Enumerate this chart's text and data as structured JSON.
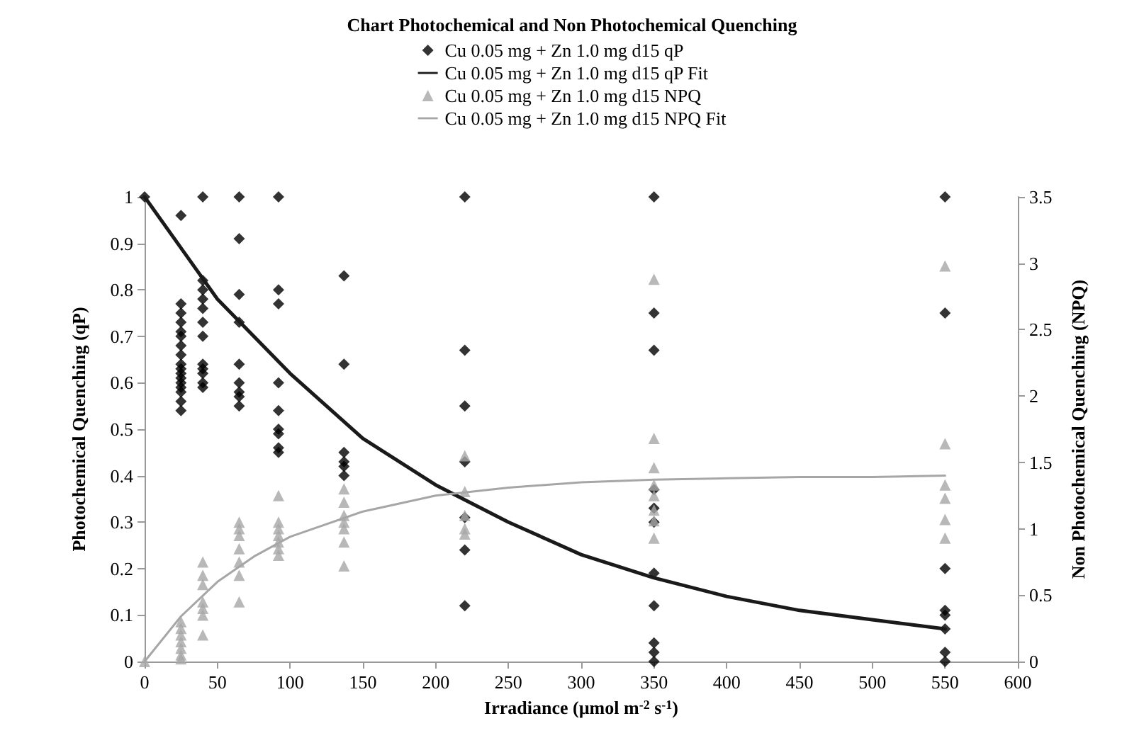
{
  "chart_data": {
    "type": "scatter",
    "title": "Chart Photochemical and Non Photochemical Quenching",
    "xlabel": "Irradiance (µmol m$^{-2}$ s$^{-1}$)",
    "ylabel": "Photochemical Quenching (qP)",
    "y2label": "Non Photochemical Quenching (NPQ)",
    "xlim": [
      0,
      600
    ],
    "xticks": [
      0,
      50,
      100,
      150,
      200,
      250,
      300,
      350,
      400,
      450,
      500,
      550,
      600
    ],
    "ylim": [
      0,
      1
    ],
    "yticks": [
      0,
      0.1,
      0.2,
      0.3,
      0.4,
      0.5,
      0.6,
      0.7,
      0.8,
      0.9,
      1
    ],
    "y2lim": [
      0,
      3.5
    ],
    "y2ticks": [
      0,
      0.5,
      1,
      1.5,
      2,
      2.5,
      3,
      3.5
    ],
    "grid": false,
    "legend": "top",
    "series": [
      {
        "name": "Cu 0.05 mg + Zn 1.0 mg d15 qP",
        "type": "scatter",
        "marker": "diamond",
        "color": "#000000",
        "x": [
          0,
          25,
          25,
          25,
          25,
          25,
          25,
          25,
          25,
          25,
          25,
          25,
          25,
          25,
          25,
          25,
          25,
          25,
          40,
          40,
          40,
          40,
          40,
          40,
          40,
          40,
          40,
          40,
          40,
          40,
          65,
          65,
          65,
          65,
          65,
          65,
          65,
          65,
          65,
          92,
          92,
          92,
          92,
          92,
          92,
          92,
          92,
          92,
          137,
          137,
          137,
          137,
          137,
          137,
          220,
          220,
          220,
          220,
          220,
          220,
          220,
          350,
          350,
          350,
          350,
          350,
          350,
          350,
          350,
          350,
          350,
          350,
          550,
          550,
          550,
          550,
          550,
          550,
          550,
          550
        ],
        "values": [
          1,
          0.96,
          0.77,
          0.75,
          0.73,
          0.71,
          0.7,
          0.68,
          0.66,
          0.64,
          0.63,
          0.62,
          0.61,
          0.6,
          0.59,
          0.58,
          0.56,
          0.54,
          1,
          0.82,
          0.8,
          0.78,
          0.76,
          0.73,
          0.7,
          0.64,
          0.63,
          0.62,
          0.6,
          0.59,
          1,
          0.91,
          0.79,
          0.73,
          0.64,
          0.6,
          0.58,
          0.57,
          0.55,
          1,
          0.8,
          0.77,
          0.6,
          0.54,
          0.5,
          0.49,
          0.46,
          0.45,
          0.83,
          0.64,
          0.45,
          0.43,
          0.42,
          0.4,
          1,
          0.67,
          0.55,
          0.43,
          0.31,
          0.24,
          0.12,
          1,
          0.75,
          0.67,
          0.37,
          0.33,
          0.3,
          0.19,
          0.12,
          0.04,
          0.02,
          0,
          1,
          0.75,
          0.2,
          0.11,
          0.1,
          0.07,
          0.02,
          0
        ]
      },
      {
        "name": "Cu 0.05 mg + Zn 1.0 mg d15 qP Fit",
        "type": "line",
        "marker": "none",
        "line_style": "solid",
        "color": "#1a1a1a",
        "x": [
          0,
          25,
          50,
          75,
          100,
          150,
          200,
          250,
          300,
          350,
          400,
          450,
          500,
          550
        ],
        "values": [
          1,
          0.89,
          0.78,
          0.7,
          0.62,
          0.48,
          0.38,
          0.3,
          0.23,
          0.18,
          0.14,
          0.11,
          0.09,
          0.07
        ]
      },
      {
        "name": "Cu 0.05 mg + Zn 1.0 mg d15 NPQ",
        "type": "scatter",
        "marker": "triangle",
        "color": "#a6a6a6",
        "axis": "y2",
        "x": [
          0,
          25,
          25,
          25,
          25,
          25,
          25,
          25,
          40,
          40,
          40,
          40,
          40,
          40,
          40,
          65,
          65,
          65,
          65,
          65,
          65,
          65,
          92,
          92,
          92,
          92,
          92,
          92,
          92,
          137,
          137,
          137,
          137,
          137,
          137,
          137,
          220,
          220,
          220,
          220,
          220,
          350,
          350,
          350,
          350,
          350,
          350,
          350,
          350,
          550,
          550,
          550,
          550,
          550,
          550
        ],
        "values": [
          0,
          0.3,
          0.25,
          0.2,
          0.15,
          0.1,
          0.05,
          0.02,
          0.75,
          0.65,
          0.58,
          0.45,
          0.4,
          0.35,
          0.2,
          1.05,
          1,
          0.95,
          0.85,
          0.75,
          0.65,
          0.45,
          1.25,
          1.05,
          1,
          0.95,
          0.9,
          0.85,
          0.8,
          1.3,
          1.2,
          1.1,
          1.05,
          1,
          0.9,
          0.72,
          1.55,
          1.28,
          1.1,
          1,
          0.96,
          2.88,
          1.68,
          1.46,
          1.33,
          1.25,
          1.14,
          1.06,
          0.93,
          2.98,
          1.64,
          1.33,
          1.23,
          1.07,
          0.93
        ]
      },
      {
        "name": "Cu 0.05 mg + Zn 1.0 mg d15 NPQ Fit",
        "type": "line",
        "marker": "none",
        "line_style": "solid",
        "color": "#a6a6a6",
        "axis": "y2",
        "x": [
          0,
          25,
          50,
          75,
          100,
          150,
          200,
          250,
          300,
          350,
          400,
          450,
          500,
          550
        ],
        "values": [
          0,
          0.34,
          0.6,
          0.79,
          0.94,
          1.13,
          1.25,
          1.31,
          1.35,
          1.37,
          1.38,
          1.39,
          1.39,
          1.4
        ]
      }
    ]
  }
}
